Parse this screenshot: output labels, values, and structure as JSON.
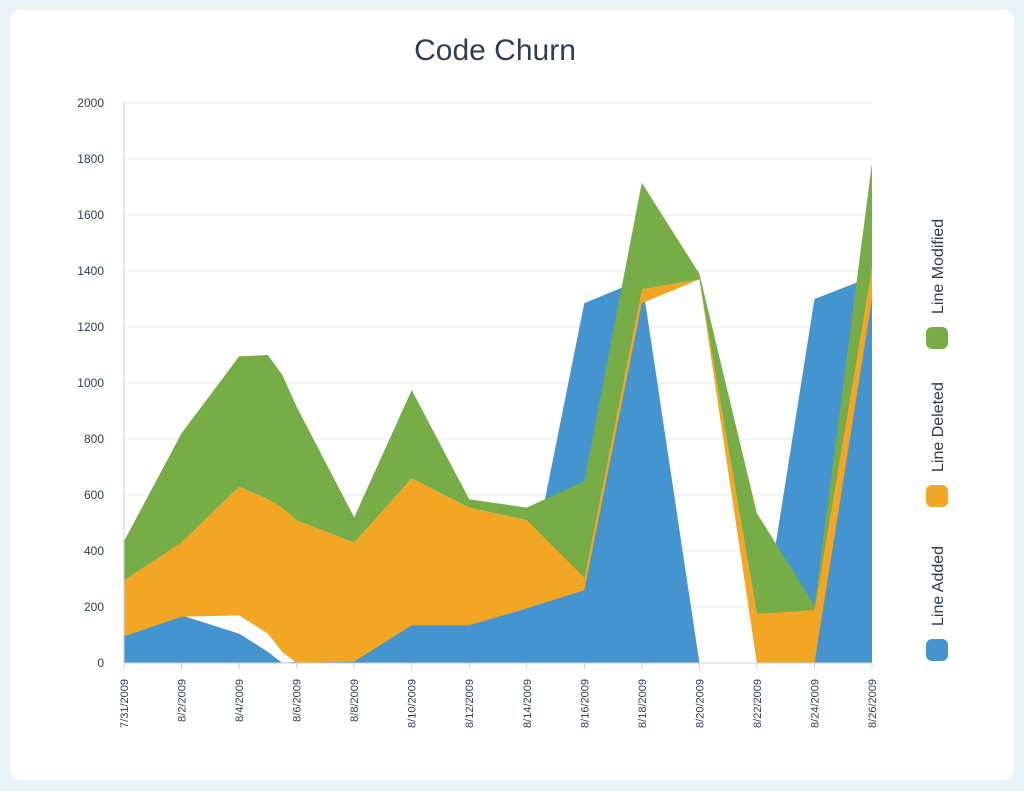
{
  "chart_data": {
    "type": "area",
    "stacked": true,
    "title": "Code Churn",
    "xlabel": "",
    "ylabel": "",
    "ylim": [
      0,
      2000
    ],
    "yticks": [
      0,
      200,
      400,
      600,
      800,
      1000,
      1200,
      1400,
      1600,
      1800,
      2000
    ],
    "x": [
      "7/31/2009",
      "8/2/2009",
      "8/4/2009",
      "8/6/2009",
      "8/8/2009",
      "8/10/2009",
      "8/12/2009",
      "8/14/2009",
      "8/16/2009",
      "8/18/2009",
      "8/20/2009",
      "8/22/2009",
      "8/24/2009",
      "8/26/2009"
    ],
    "series": [
      {
        "name": "Line Added",
        "color": "#4394cf",
        "points": [
          [
            "7/31/2009",
            95
          ],
          [
            "8/1/2009",
            165
          ],
          [
            "8/2/2009",
            170
          ],
          [
            "8/4/2009",
            105
          ],
          [
            "8/5/2009",
            40
          ],
          [
            "8/5/2009 12:00",
            0
          ],
          [
            "8/6/2009",
            5
          ],
          [
            "8/8/2009",
            135
          ],
          [
            "8/10/2009",
            135
          ],
          [
            "8/12/2009",
            195
          ],
          [
            "8/14/2009",
            260
          ],
          [
            "8/16/2009",
            1285
          ],
          [
            "8/18/2009",
            1370
          ],
          [
            "8/20/2009",
            0
          ],
          [
            "8/22/2009",
            0
          ],
          [
            "8/24/2009",
            1300
          ],
          [
            "8/26/2009",
            1380
          ]
        ]
      },
      {
        "name": "Line Deleted",
        "color": "#f2a623",
        "points": [
          [
            "7/31/2009",
            200
          ],
          [
            "8/2/2009",
            265
          ],
          [
            "8/4/2009",
            460
          ],
          [
            "8/5/2009",
            480
          ],
          [
            "8/5/2009 12:00",
            515
          ],
          [
            "8/6/2009",
            510
          ],
          [
            "8/8/2009",
            425
          ],
          [
            "8/10/2009",
            525
          ],
          [
            "8/12/2009",
            420
          ],
          [
            "8/14/2009",
            315
          ],
          [
            "8/16/2009",
            45
          ],
          [
            "8/18/2009",
            50
          ],
          [
            "8/20/2009",
            0
          ],
          [
            "8/22/2009",
            175
          ],
          [
            "8/24/2009",
            190
          ],
          [
            "8/26/2009",
            115
          ]
        ]
      },
      {
        "name": "Line Modified",
        "color": "#76ad47",
        "points": [
          [
            "7/31/2009",
            140
          ],
          [
            "8/2/2009",
            390
          ],
          [
            "8/4/2009",
            465
          ],
          [
            "8/5/2009",
            515
          ],
          [
            "8/5/2009 12:00",
            475
          ],
          [
            "8/6/2009",
            405
          ],
          [
            "8/8/2009",
            90
          ],
          [
            "8/10/2009",
            315
          ],
          [
            "8/12/2009",
            30
          ],
          [
            "8/14/2009",
            45
          ],
          [
            "8/16/2009",
            345
          ],
          [
            "8/18/2009",
            380
          ],
          [
            "8/20/2009",
            20
          ],
          [
            "8/22/2009",
            360
          ],
          [
            "8/24/2009",
            15
          ],
          [
            "8/26/2009",
            370
          ]
        ]
      }
    ],
    "grid": true,
    "legend": {
      "position": "right",
      "orientation": "vertical-rotated"
    }
  }
}
